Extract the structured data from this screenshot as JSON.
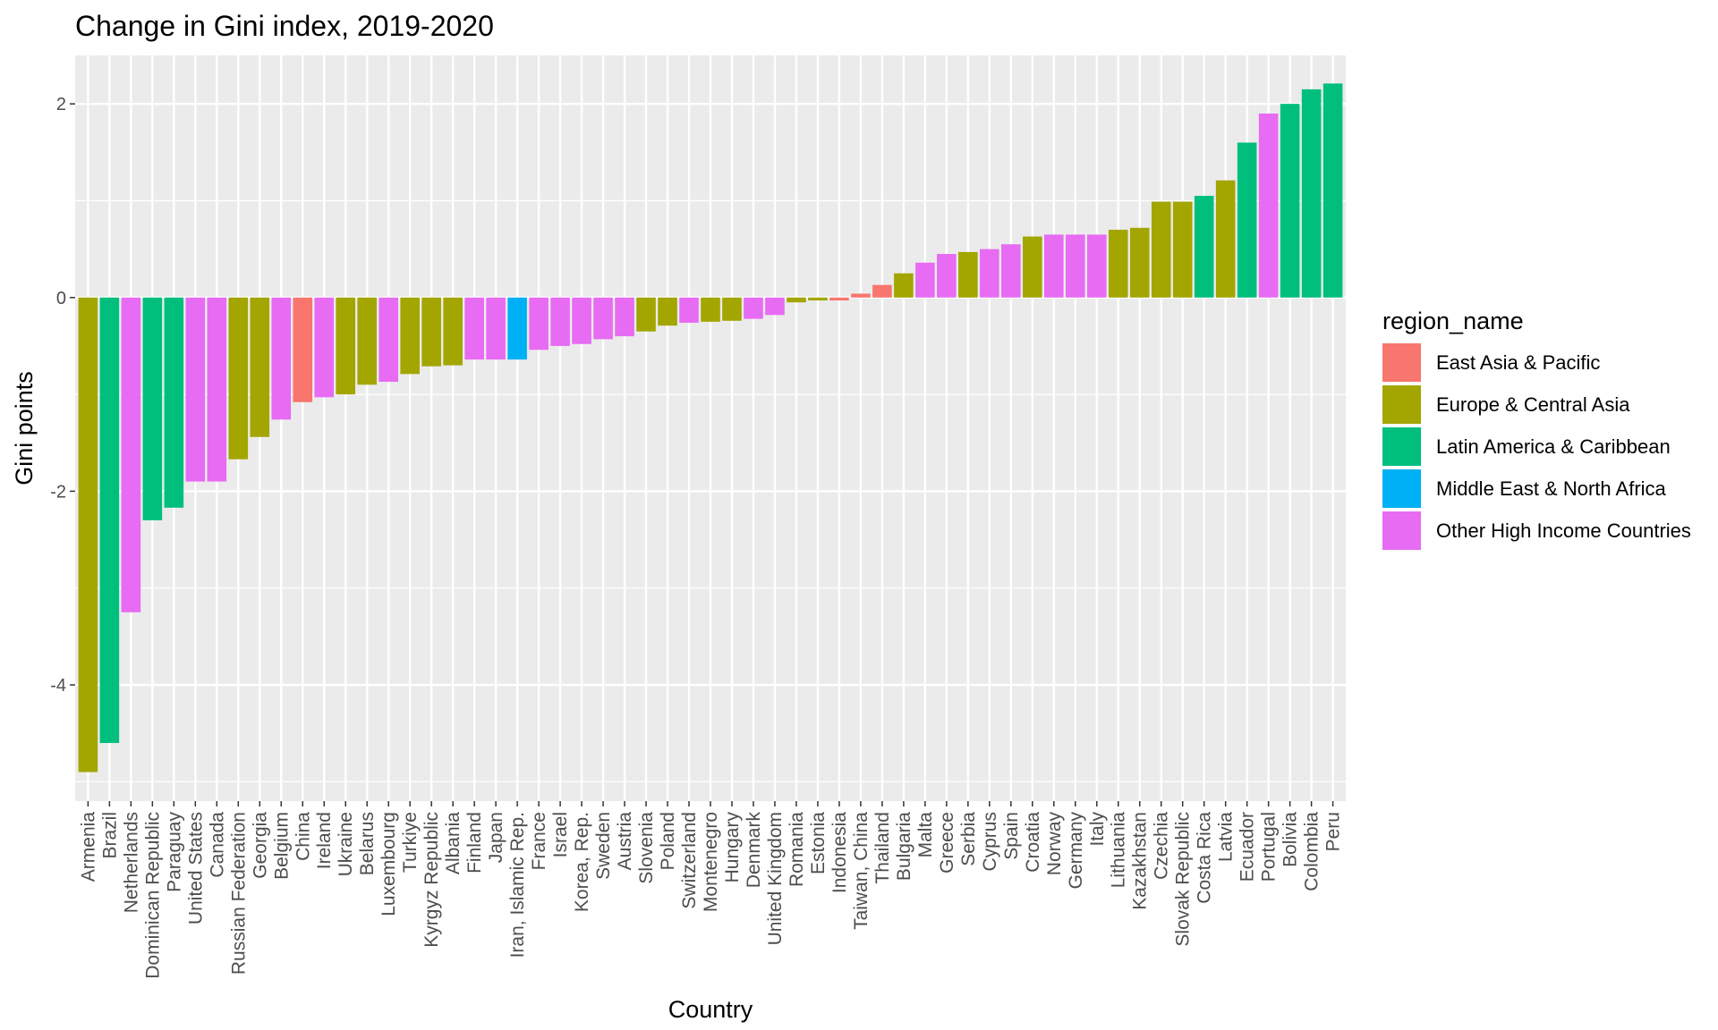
{
  "chart_data": {
    "type": "bar",
    "title": "Change in Gini index, 2019-2020",
    "xlabel": "Country",
    "ylabel": "Gini points",
    "ylim": [
      -5.2,
      2.5
    ],
    "yticks": [
      -4,
      -2,
      0,
      2
    ],
    "grid": true,
    "legend": {
      "title": "region_name",
      "placement": "right",
      "entries": [
        {
          "name": "East Asia & Pacific",
          "color": "#F8766D"
        },
        {
          "name": "Europe & Central Asia",
          "color": "#A3A500"
        },
        {
          "name": "Latin America & Caribbean",
          "color": "#00BF7D"
        },
        {
          "name": "Middle East & North Africa",
          "color": "#00B0F6"
        },
        {
          "name": "Other High Income Countries",
          "color": "#E76BF3"
        }
      ]
    },
    "categories": [
      "Armenia",
      "Brazil",
      "Netherlands",
      "Dominican Republic",
      "Paraguay",
      "United States",
      "Canada",
      "Russian Federation",
      "Georgia",
      "Belgium",
      "China",
      "Ireland",
      "Ukraine",
      "Belarus",
      "Luxembourg",
      "Turkiye",
      "Kyrgyz Republic",
      "Albania",
      "Finland",
      "Japan",
      "Iran, Islamic Rep.",
      "France",
      "Israel",
      "Korea, Rep.",
      "Sweden",
      "Austria",
      "Slovenia",
      "Poland",
      "Switzerland",
      "Montenegro",
      "Hungary",
      "Denmark",
      "United Kingdom",
      "Romania",
      "Estonia",
      "Indonesia",
      "Taiwan, China",
      "Thailand",
      "Bulgaria",
      "Malta",
      "Greece",
      "Serbia",
      "Cyprus",
      "Spain",
      "Croatia",
      "Norway",
      "Germany",
      "Italy",
      "Lithuania",
      "Kazakhstan",
      "Czechia",
      "Slovak Republic",
      "Costa Rica",
      "Latvia",
      "Ecuador",
      "Portugal",
      "Bolivia",
      "Colombia",
      "Peru"
    ],
    "values": [
      -4.9,
      -4.6,
      -3.25,
      -2.3,
      -2.17,
      -1.9,
      -1.9,
      -1.67,
      -1.44,
      -1.26,
      -1.08,
      -1.03,
      -1.0,
      -0.9,
      -0.87,
      -0.79,
      -0.71,
      -0.7,
      -0.64,
      -0.64,
      -0.64,
      -0.54,
      -0.5,
      -0.48,
      -0.43,
      -0.4,
      -0.35,
      -0.29,
      -0.26,
      -0.25,
      -0.24,
      -0.22,
      -0.18,
      -0.05,
      -0.03,
      -0.03,
      0.04,
      0.13,
      0.25,
      0.36,
      0.45,
      0.47,
      0.5,
      0.55,
      0.63,
      0.65,
      0.65,
      0.65,
      0.7,
      0.72,
      0.99,
      0.99,
      1.05,
      1.21,
      1.6,
      1.9,
      2.0,
      2.15,
      2.21
    ],
    "regions": [
      "Europe & Central Asia",
      "Latin America & Caribbean",
      "Other High Income Countries",
      "Latin America & Caribbean",
      "Latin America & Caribbean",
      "Other High Income Countries",
      "Other High Income Countries",
      "Europe & Central Asia",
      "Europe & Central Asia",
      "Other High Income Countries",
      "East Asia & Pacific",
      "Other High Income Countries",
      "Europe & Central Asia",
      "Europe & Central Asia",
      "Other High Income Countries",
      "Europe & Central Asia",
      "Europe & Central Asia",
      "Europe & Central Asia",
      "Other High Income Countries",
      "Other High Income Countries",
      "Middle East & North Africa",
      "Other High Income Countries",
      "Other High Income Countries",
      "Other High Income Countries",
      "Other High Income Countries",
      "Other High Income Countries",
      "Europe & Central Asia",
      "Europe & Central Asia",
      "Other High Income Countries",
      "Europe & Central Asia",
      "Europe & Central Asia",
      "Other High Income Countries",
      "Other High Income Countries",
      "Europe & Central Asia",
      "Europe & Central Asia",
      "East Asia & Pacific",
      "East Asia & Pacific",
      "East Asia & Pacific",
      "Europe & Central Asia",
      "Other High Income Countries",
      "Other High Income Countries",
      "Europe & Central Asia",
      "Other High Income Countries",
      "Other High Income Countries",
      "Europe & Central Asia",
      "Other High Income Countries",
      "Other High Income Countries",
      "Other High Income Countries",
      "Europe & Central Asia",
      "Europe & Central Asia",
      "Europe & Central Asia",
      "Europe & Central Asia",
      "Latin America & Caribbean",
      "Europe & Central Asia",
      "Latin America & Caribbean",
      "Other High Income Countries",
      "Latin America & Caribbean",
      "Latin America & Caribbean",
      "Latin America & Caribbean"
    ],
    "colors": {
      "panel": "#EBEBEB",
      "grid": "#FFFFFF"
    }
  }
}
